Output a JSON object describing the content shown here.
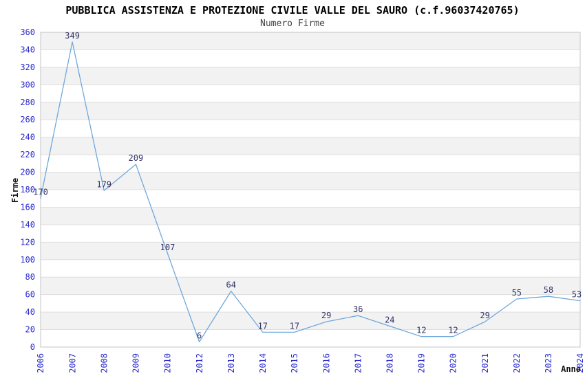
{
  "chart_data": {
    "type": "line",
    "title": "PUBBLICA ASSISTENZA E PROTEZIONE CIVILE VALLE DEL SAURO (c.f.96037420765)",
    "subtitle": "Numero Firme",
    "xlabel": "Anno",
    "ylabel": "Firme",
    "categories": [
      "2006",
      "2007",
      "2008",
      "2009",
      "2010",
      "2012",
      "2013",
      "2014",
      "2015",
      "2016",
      "2017",
      "2018",
      "2019",
      "2020",
      "2021",
      "2022",
      "2023",
      "2024"
    ],
    "values": [
      170,
      349,
      179,
      209,
      107,
      6,
      64,
      17,
      17,
      29,
      36,
      24,
      12,
      12,
      29,
      55,
      58,
      53
    ],
    "ylim": [
      0,
      360
    ],
    "ytick_step": 20,
    "legend": "none",
    "grid": {
      "horizontal_step": 20,
      "alternating_horizontal_bands": true
    },
    "point_labels_shown": true,
    "colors": {
      "line": "#6FA8DC",
      "tick_label": "#2929CC",
      "point_label": "#333366",
      "band_gray": "#F2F2F2",
      "gridline": "#DEDEDE",
      "plot_border": "#C4C4C4",
      "axis_title": "#111111",
      "title": "#000000",
      "subtitle": "#404040",
      "background": "#FFFFFF"
    }
  }
}
